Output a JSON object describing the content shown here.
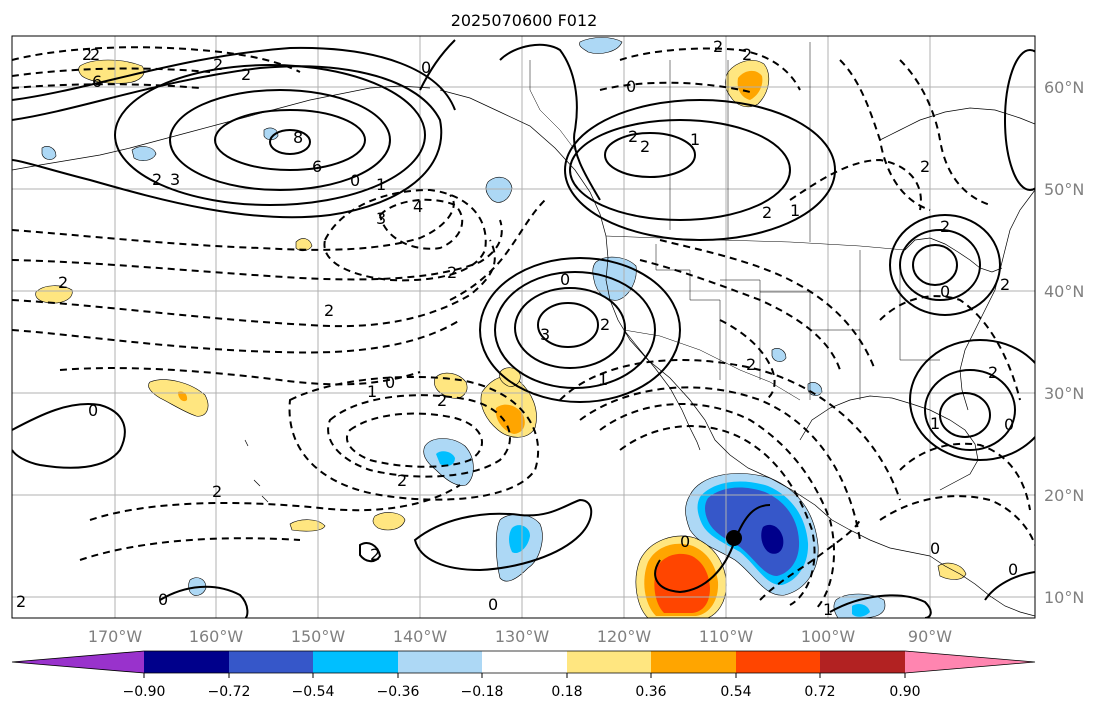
{
  "title": "2025070600 F012",
  "longitude_labels": [
    "170°W",
    "160°W",
    "150°W",
    "140°W",
    "130°W",
    "120°W",
    "110°W",
    "100°W",
    "90°W"
  ],
  "latitude_labels": [
    "60°N",
    "50°N",
    "40°N",
    "30°N",
    "20°N",
    "10°N"
  ],
  "colorbar": {
    "tick_labels": [
      "−0.90",
      "−0.72",
      "−0.54",
      "−0.36",
      "−0.18",
      "0.18",
      "0.36",
      "0.54",
      "0.72",
      "0.90"
    ],
    "colors": [
      "#9932cc",
      "#00008b",
      "#3657c9",
      "#00bfff",
      "#add8f5",
      "#ffffff",
      "#ffe680",
      "#ffa500",
      "#ff4500",
      "#b22222",
      "#ff85b0"
    ]
  },
  "contour_labels": [
    "2",
    "2",
    "0",
    "2",
    "8",
    "6",
    "3",
    "2",
    "1",
    "0",
    "3",
    "4",
    "2",
    "2",
    "2",
    "2",
    "2",
    "1",
    "2",
    "2",
    "0",
    "2",
    "1",
    "0",
    "3",
    "1",
    "2",
    "2",
    "2",
    "0",
    "2",
    "1",
    "0",
    "1",
    "0",
    "0",
    "2",
    "0",
    "2",
    "2",
    "2",
    "0",
    "0",
    "0",
    "0",
    "1",
    "2",
    "6",
    "2",
    "2",
    "2"
  ],
  "marker": "storm-center"
}
